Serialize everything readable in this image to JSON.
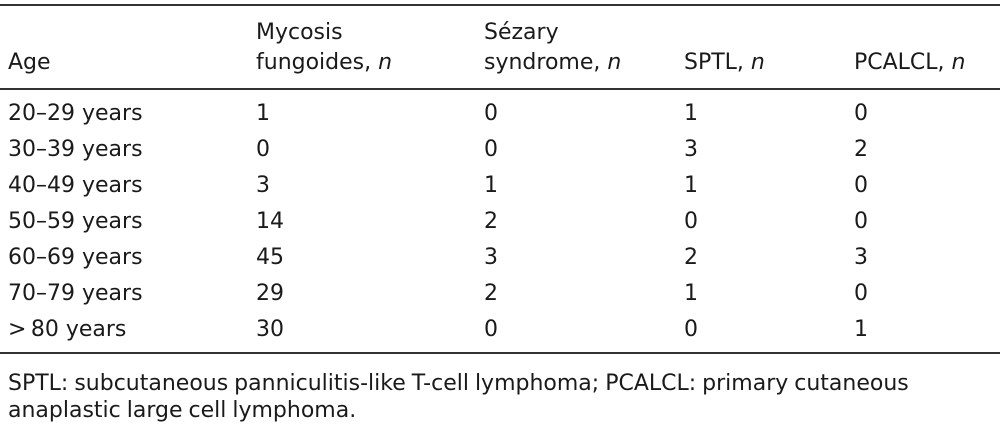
{
  "table": {
    "headers": [
      {
        "lines": [
          "",
          "Age"
        ],
        "italic": ""
      },
      {
        "lines": [
          "Mycosis",
          "fungoides, "
        ],
        "italic": "n"
      },
      {
        "lines": [
          "Sézary",
          "syndrome, "
        ],
        "italic": "n"
      },
      {
        "lines": [
          "",
          "SPTL, "
        ],
        "italic": "n"
      },
      {
        "lines": [
          "",
          "PCALCL, "
        ],
        "italic": "n"
      }
    ],
    "rows": [
      [
        "20–29 years",
        "1",
        "0",
        "1",
        "0"
      ],
      [
        "30–39 years",
        "0",
        "0",
        "3",
        "2"
      ],
      [
        "40–49 years",
        "3",
        "1",
        "1",
        "0"
      ],
      [
        "50–59 years",
        "14",
        "2",
        "0",
        "0"
      ],
      [
        "60–69 years",
        "45",
        "3",
        "2",
        "3"
      ],
      [
        "70–79 years",
        "29",
        "2",
        "1",
        "0"
      ],
      [
        "> 80 years",
        "30",
        "0",
        "0",
        "1"
      ]
    ]
  },
  "footnote": "SPTL: subcutaneous panniculitis-like T-cell lymphoma; PCALCL: primary cutaneous anaplastic large cell lymphoma."
}
